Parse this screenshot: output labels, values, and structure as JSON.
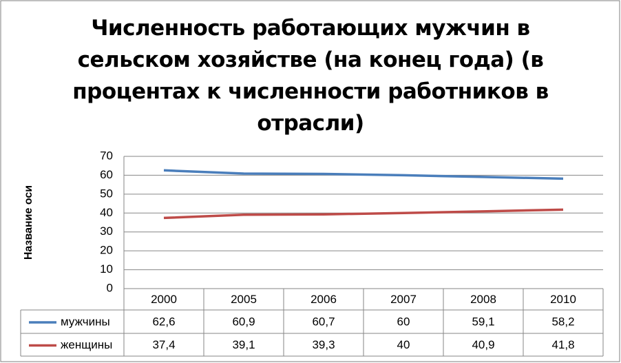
{
  "chart_data": {
    "type": "line",
    "title": "Численность работающих мужчин в сельском хозяйстве (на конец года) (в процентах к численности работников в отрасли)",
    "y_label": "Название оси",
    "categories": [
      "2000",
      "2005",
      "2006",
      "2007",
      "2008",
      "2010"
    ],
    "series": [
      {
        "name": "мужчины",
        "color": "#4a7ebb",
        "values": [
          62.6,
          60.9,
          60.7,
          60,
          59.1,
          58.2
        ],
        "value_labels": [
          "62,6",
          "60,9",
          "60,7",
          "60",
          "59,1",
          "58,2"
        ]
      },
      {
        "name": "женщины",
        "color": "#be4b48",
        "values": [
          37.4,
          39.1,
          39.3,
          40,
          40.9,
          41.8
        ],
        "value_labels": [
          "37,4",
          "39,1",
          "39,3",
          "40",
          "40,9",
          "41,8"
        ]
      }
    ],
    "ylim": [
      0,
      70
    ],
    "yticks": [
      0,
      10,
      20,
      30,
      40,
      50,
      60,
      70
    ],
    "grid": true
  }
}
